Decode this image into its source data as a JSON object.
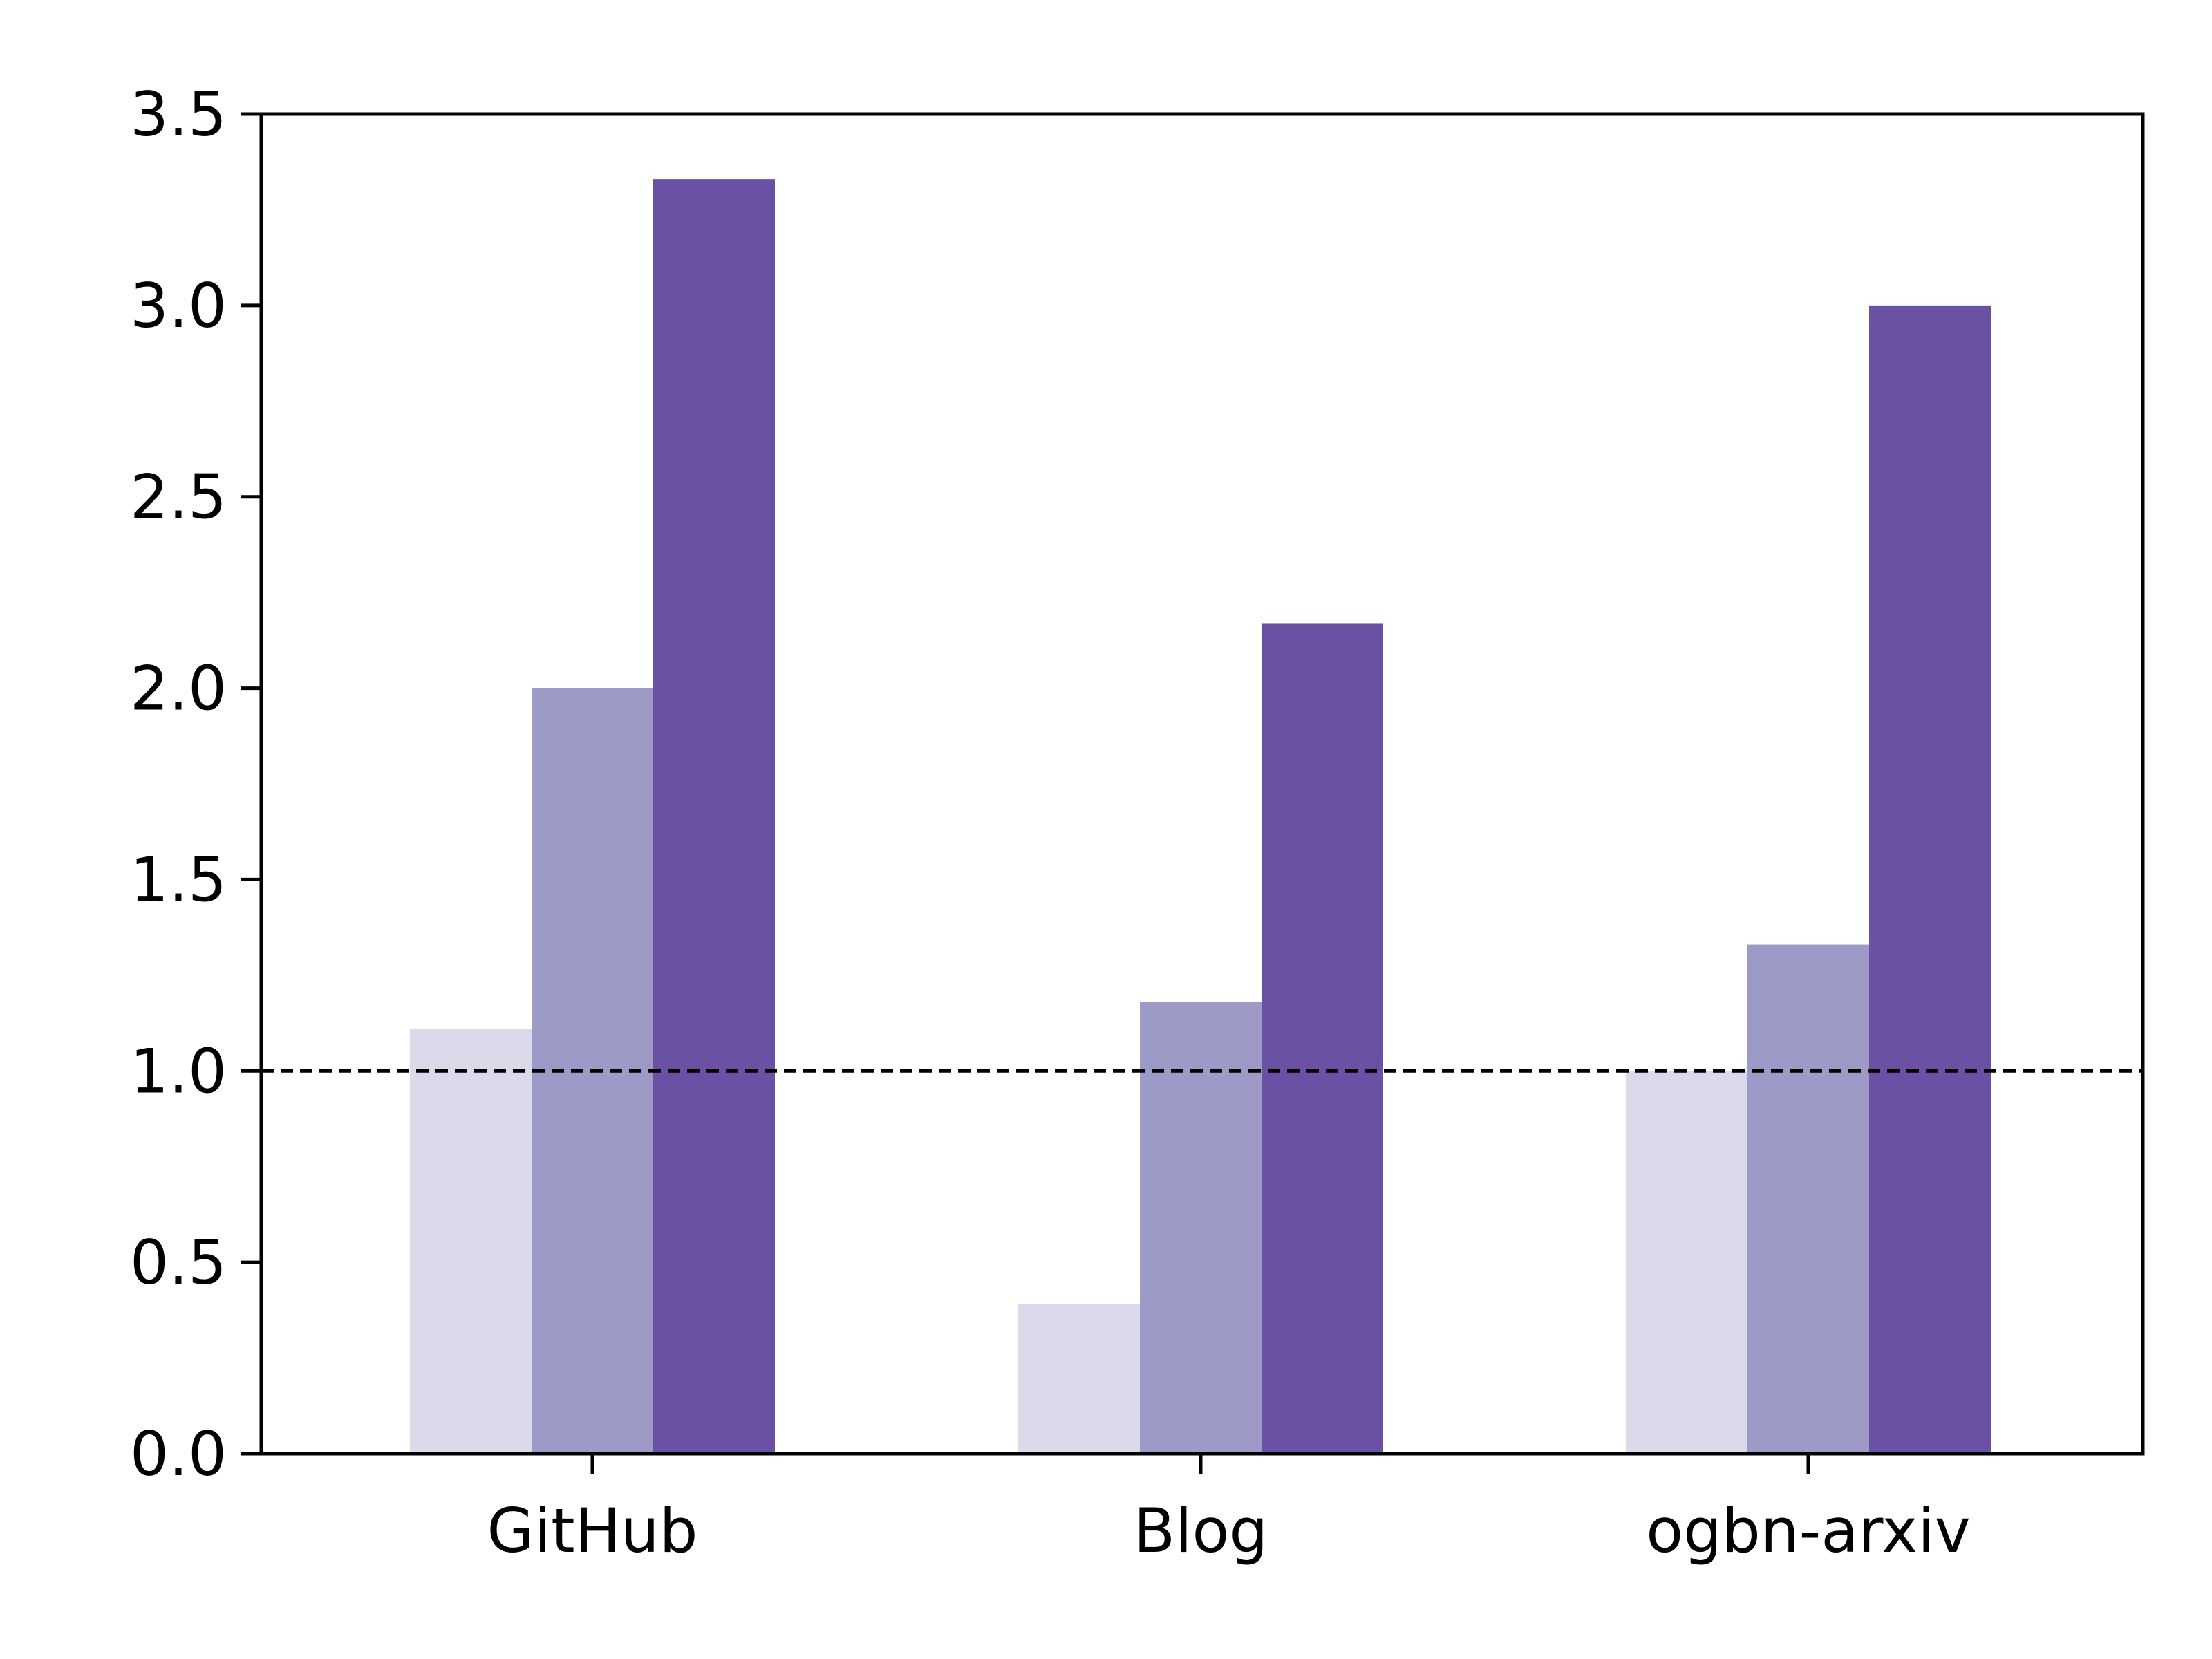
{
  "chart_data": {
    "type": "bar",
    "title": "",
    "xlabel": "",
    "ylabel": "",
    "categories": [
      "GitHub",
      "Blog",
      "ogbn-arxiv"
    ],
    "series": [
      {
        "values": [
          1.11,
          0.39,
          1.0
        ],
        "color": "#dadaea"
      },
      {
        "values": [
          2.0,
          1.18,
          1.33
        ],
        "color": "#9e9ac8"
      },
      {
        "values": [
          3.33,
          2.17,
          3.0
        ],
        "color": "#6a51a3"
      }
    ],
    "ylim": [
      0,
      3.5
    ],
    "yticks": [
      0.0,
      0.5,
      1.0,
      1.5,
      2.0,
      2.5,
      3.0,
      3.5
    ],
    "ytick_labels": [
      "0.0",
      "0.5",
      "1.0",
      "1.5",
      "2.0",
      "2.5",
      "3.0",
      "3.5"
    ],
    "reference_line": {
      "y": 1.0,
      "style": "dashed",
      "color": "#000000"
    },
    "grid": false,
    "legend": "none"
  }
}
